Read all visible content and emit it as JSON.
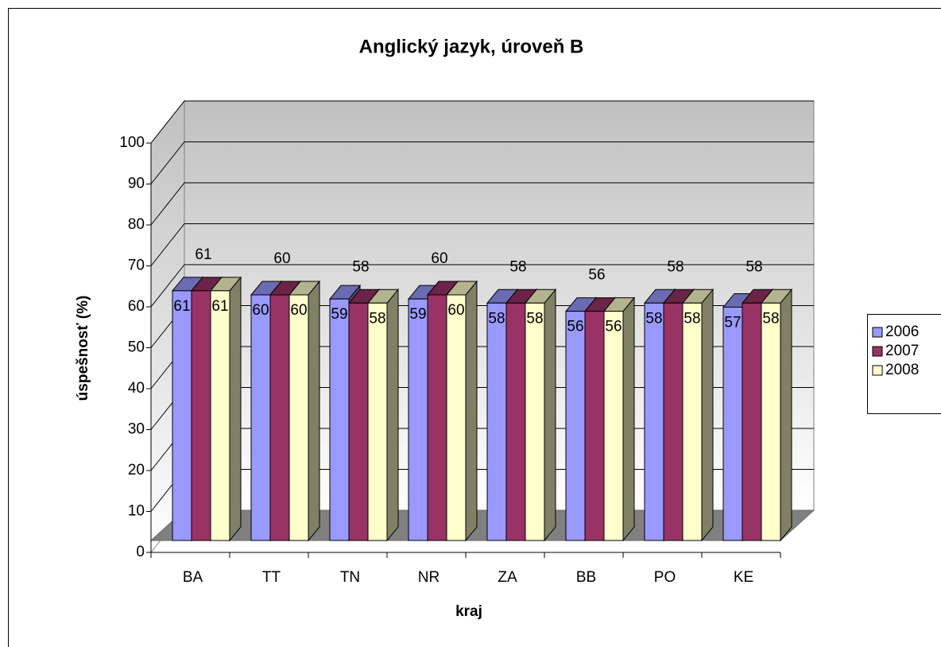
{
  "chart_data": {
    "type": "bar3d",
    "title": "Anglický jazyk, úroveň B",
    "x_label": "kraj",
    "y_label": "úspešnosť (%)",
    "categories": [
      "BA",
      "TT",
      "TN",
      "NR",
      "ZA",
      "BB",
      "PO",
      "KE"
    ],
    "series": [
      {
        "name": "2006",
        "color": "#9999ff",
        "values": [
          61,
          60,
          59,
          59,
          58,
          56,
          58,
          57
        ]
      },
      {
        "name": "2007",
        "color": "#993366",
        "values": [
          61,
          60,
          58,
          60,
          58,
          56,
          58,
          58
        ]
      },
      {
        "name": "2008",
        "color": "#ffffcc",
        "values": [
          61,
          60,
          58,
          60,
          58,
          56,
          58,
          58
        ]
      }
    ],
    "ylim": [
      0,
      100
    ],
    "yticks": [
      0,
      10,
      20,
      30,
      40,
      50,
      60,
      70,
      80,
      90,
      100
    ],
    "grid": true,
    "legend": "right"
  }
}
